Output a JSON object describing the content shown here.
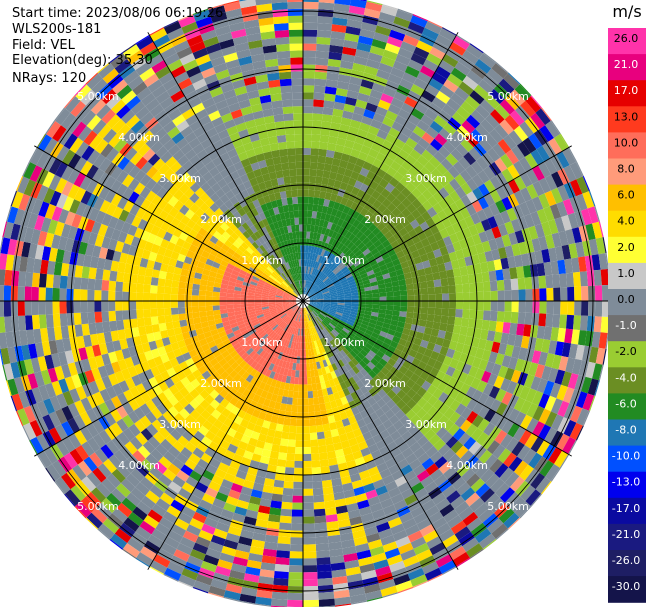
{
  "info": {
    "start_time": "Start time: 2023/08/06 06:19:26",
    "instrument": "WLS200s-181",
    "field": "Field: VEL",
    "elevation": "Elevation(deg): 35.30",
    "nrays": "NRays: 120"
  },
  "chart_data": {
    "type": "heatmap",
    "projection": "polar-ppi",
    "field": "VEL",
    "units": "m/s",
    "range_rings_km": [
      1,
      2,
      3,
      4,
      5
    ],
    "ring_labels": [
      "1.00km",
      "2.00km",
      "3.00km",
      "4.00km",
      "5.00km"
    ],
    "n_rays": 120,
    "max_range_km": 5.3,
    "colorbar": {
      "title": "m/s",
      "ticks": [
        "26.0",
        "21.0",
        "17.0",
        "13.0",
        "10.0",
        "8.0",
        "6.0",
        "4.0",
        "2.0",
        "1.0",
        "0.0",
        "-1.0",
        "-2.0",
        "-4.0",
        "-6.0",
        "-8.0",
        "-10.0",
        "-13.0",
        "-17.0",
        "-21.0",
        "-26.0",
        "-30.0"
      ],
      "colors": [
        "#ff33aa",
        "#e8007e",
        "#e60000",
        "#ff3a1e",
        "#ff6d5a",
        "#ff9b7a",
        "#ffbf00",
        "#ffdc00",
        "#ffff33",
        "#c8c8c8",
        "#7f8c99",
        "#707070",
        "#9acd32",
        "#6b8e23",
        "#228b22",
        "#1f77b4",
        "#0050ff",
        "#0000ee",
        "#0a0aa0",
        "#1a1a80",
        "#1e1e64",
        "#14144a"
      ]
    }
  }
}
